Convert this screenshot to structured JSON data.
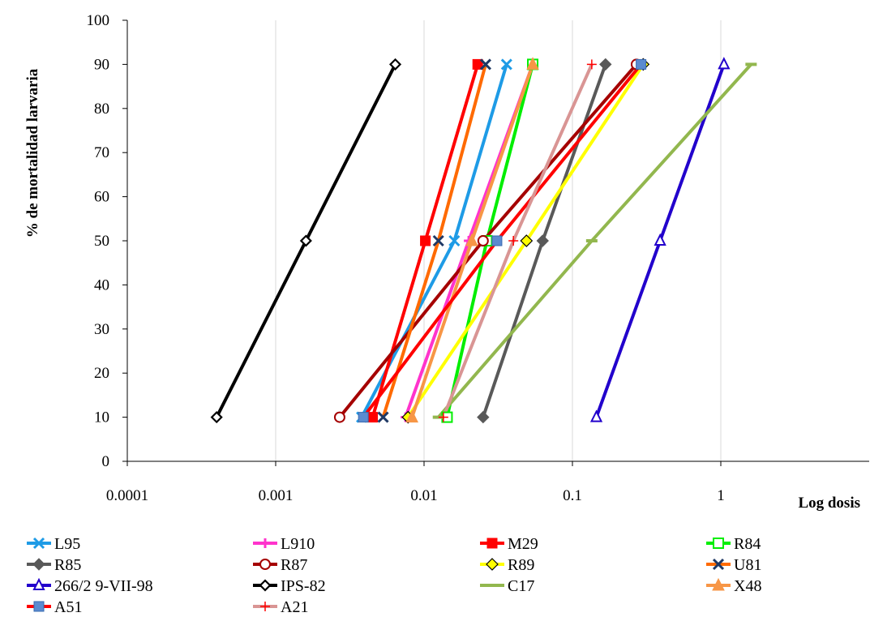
{
  "chart_data": {
    "type": "line",
    "title": "",
    "xlabel": "Log dosis",
    "ylabel": "% de mortalidad larvaria",
    "x_scale": "log",
    "xlim": [
      0.0001,
      10
    ],
    "ylim": [
      0,
      100
    ],
    "x_ticks": [
      0.0001,
      0.001,
      0.01,
      0.1,
      1
    ],
    "x_tick_labels": [
      "0.0001",
      "0.001",
      "0.01",
      "0.1",
      "1"
    ],
    "y_ticks": [
      0,
      10,
      20,
      30,
      40,
      50,
      60,
      70,
      80,
      90,
      100
    ],
    "y_tick_labels": [
      "0",
      "10",
      "20",
      "30",
      "40",
      "50",
      "60",
      "70",
      "80",
      "90",
      "100"
    ],
    "grid": "vertical",
    "legend_position": "bottom",
    "series": [
      {
        "name": "L95",
        "color": "#1e9be6",
        "marker": "x",
        "x": [
          0.0038,
          0.016,
          0.036
        ],
        "y": [
          10,
          50,
          90
        ]
      },
      {
        "name": "L910",
        "color": "#ff33cc",
        "marker": "plus",
        "x": [
          0.0075,
          0.02,
          0.054
        ],
        "y": [
          10,
          50,
          90
        ]
      },
      {
        "name": "M29",
        "color": "#ff0000",
        "marker": "square",
        "x": [
          0.0045,
          0.0102,
          0.023
        ],
        "y": [
          10,
          50,
          90
        ]
      },
      {
        "name": "R84",
        "color": "#00ee00",
        "marker": "square-open",
        "x": [
          0.0143,
          0.0265,
          0.054
        ],
        "y": [
          10,
          50,
          90
        ]
      },
      {
        "name": "R85",
        "color": "#595959",
        "marker": "diamond",
        "x": [
          0.025,
          0.063,
          0.167
        ],
        "y": [
          10,
          50,
          90
        ]
      },
      {
        "name": "R87",
        "color": "#a50000",
        "marker": "circle-open",
        "x": [
          0.0027,
          0.025,
          0.27
        ],
        "y": [
          10,
          50,
          90
        ]
      },
      {
        "name": "R89",
        "color": "#ffff00",
        "marker": "diamond-yellow",
        "x": [
          0.0078,
          0.049,
          0.3
        ],
        "y": [
          10,
          50,
          90
        ]
      },
      {
        "name": "U81",
        "color": "#ff6a00",
        "marker": "x-dark",
        "x": [
          0.0053,
          0.0125,
          0.026
        ],
        "y": [
          10,
          50,
          90
        ]
      },
      {
        "name": "266/2 9-VII-98",
        "color": "#2200cc",
        "marker": "triangle-open",
        "x": [
          0.145,
          0.39,
          1.05
        ],
        "y": [
          10,
          50,
          90
        ]
      },
      {
        "name": "IPS-82",
        "color": "#000000",
        "marker": "diamond-open",
        "x": [
          0.0004,
          0.0016,
          0.0064
        ],
        "y": [
          10,
          50,
          90
        ]
      },
      {
        "name": "C17",
        "color": "#92b74e",
        "marker": "dash",
        "x": [
          0.0125,
          0.135,
          1.6
        ],
        "y": [
          10,
          50,
          90
        ]
      },
      {
        "name": "X48",
        "color": "#f79646",
        "marker": "triangle",
        "x": [
          0.0083,
          0.021,
          0.054
        ],
        "y": [
          10,
          50,
          90
        ]
      },
      {
        "name": "A51",
        "color": "#ff0000",
        "marker": "square-blue",
        "x": [
          0.0039,
          0.031,
          0.29
        ],
        "y": [
          10,
          50,
          90
        ]
      },
      {
        "name": "A21",
        "color": "#d99594",
        "marker": "plus-red",
        "x": [
          0.0135,
          0.04,
          0.135
        ],
        "y": [
          10,
          50,
          90
        ]
      }
    ]
  }
}
